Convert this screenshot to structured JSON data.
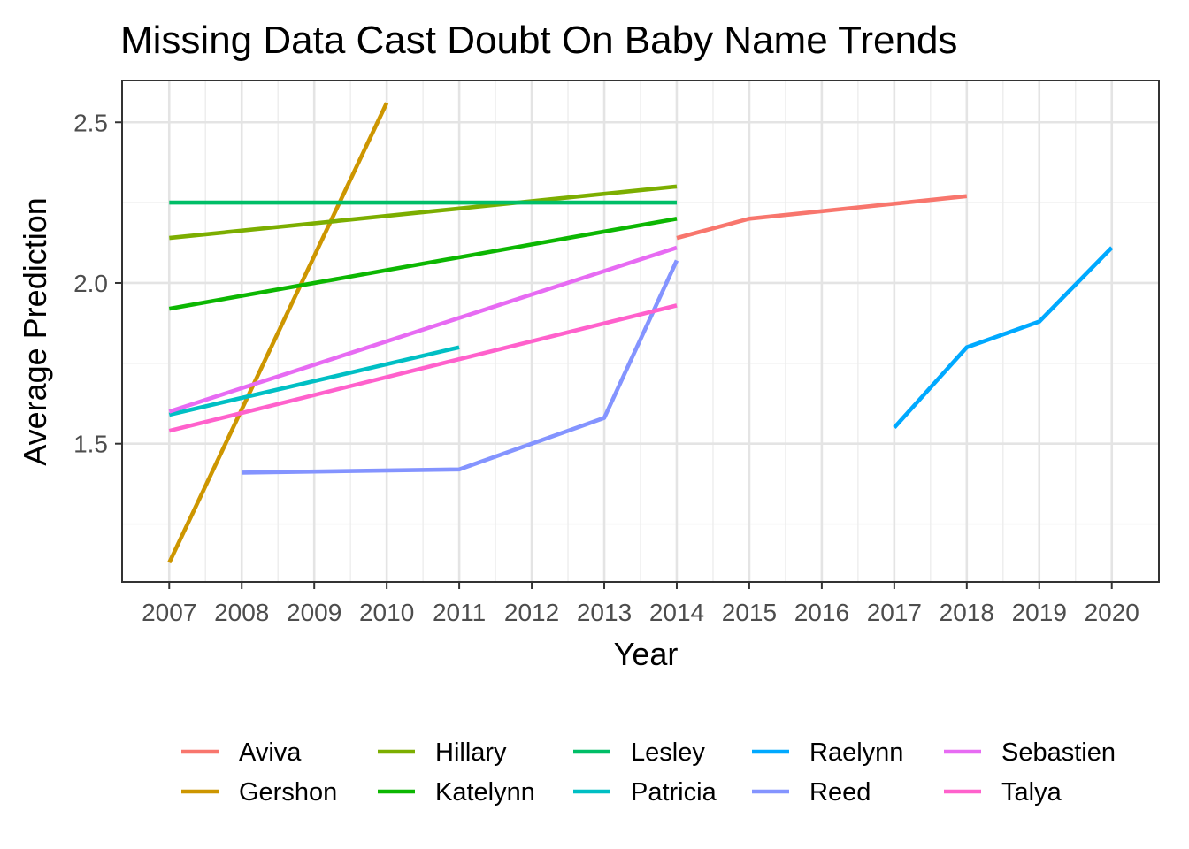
{
  "chart_data": {
    "type": "line",
    "title": "Missing Data Cast Doubt On Baby Name Trends",
    "xlabel": "Year",
    "ylabel": "Average Prediction",
    "xlim": [
      2006.35,
      2020.65
    ],
    "ylim": [
      1.07,
      2.63
    ],
    "x_ticks": [
      2007,
      2008,
      2009,
      2010,
      2011,
      2012,
      2013,
      2014,
      2015,
      2016,
      2017,
      2018,
      2019,
      2020
    ],
    "y_ticks": [
      1.5,
      2.0,
      2.5
    ],
    "y_tick_labels": [
      "1.5",
      "2.0",
      "2.5"
    ],
    "y_minor_ticks": [
      1.25,
      1.75,
      2.25
    ],
    "grid": true,
    "legend_position": "bottom",
    "series": [
      {
        "name": "Aviva",
        "color": "#F8766D",
        "x": [
          2014,
          2015,
          2018
        ],
        "y": [
          2.14,
          2.2,
          2.27
        ]
      },
      {
        "name": "Gershon",
        "color": "#CD9600",
        "x": [
          2007,
          2010
        ],
        "y": [
          1.13,
          2.56
        ]
      },
      {
        "name": "Hillary",
        "color": "#7CAE00",
        "x": [
          2007,
          2014
        ],
        "y": [
          2.14,
          2.3
        ]
      },
      {
        "name": "Katelynn",
        "color": "#0CB702",
        "x": [
          2007,
          2014
        ],
        "y": [
          1.92,
          2.2
        ]
      },
      {
        "name": "Lesley",
        "color": "#00BE67",
        "x": [
          2007,
          2014
        ],
        "y": [
          2.25,
          2.25
        ]
      },
      {
        "name": "Patricia",
        "color": "#00BFC4",
        "x": [
          2007,
          2011
        ],
        "y": [
          1.59,
          1.8
        ]
      },
      {
        "name": "Raelynn",
        "color": "#00A9FF",
        "x": [
          2017,
          2018,
          2019,
          2020
        ],
        "y": [
          1.55,
          1.8,
          1.88,
          2.11
        ]
      },
      {
        "name": "Reed",
        "color": "#8494FF",
        "x": [
          2008,
          2011,
          2013,
          2014
        ],
        "y": [
          1.41,
          1.42,
          1.58,
          2.07
        ]
      },
      {
        "name": "Sebastien",
        "color": "#E76BF3",
        "x": [
          2007,
          2014
        ],
        "y": [
          1.6,
          2.11
        ]
      },
      {
        "name": "Talya",
        "color": "#FF61CC",
        "x": [
          2007,
          2014
        ],
        "y": [
          1.54,
          1.93
        ]
      }
    ]
  }
}
